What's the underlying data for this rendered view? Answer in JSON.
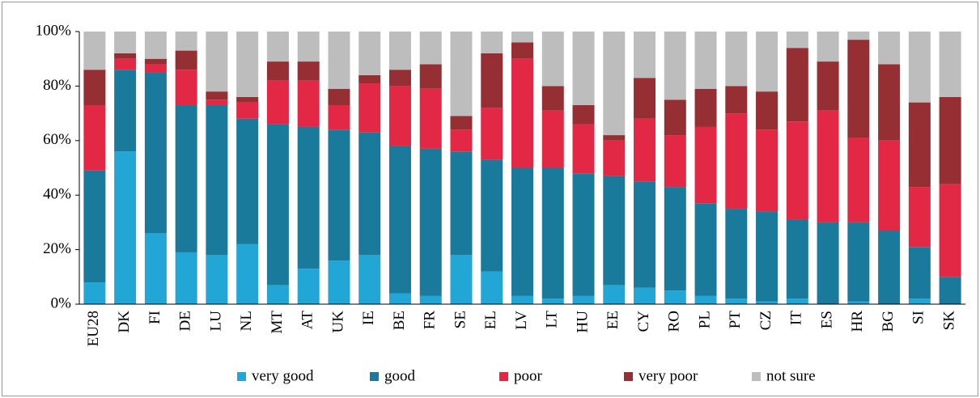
{
  "chart_data": {
    "type": "stacked_bar",
    "categories": [
      "EU28",
      "DK",
      "FI",
      "DE",
      "LU",
      "NL",
      "MT",
      "AT",
      "UK",
      "IE",
      "BE",
      "FR",
      "SE",
      "EL",
      "LV",
      "LT",
      "HU",
      "EE",
      "CY",
      "RO",
      "PL",
      "PT",
      "CZ",
      "IT",
      "ES",
      "HR",
      "BG",
      "SI",
      "SK"
    ],
    "series": [
      {
        "name": "very good",
        "color": "#22a6d6",
        "values": [
          8,
          56,
          26,
          19,
          18,
          22,
          7,
          13,
          16,
          18,
          4,
          3,
          18,
          12,
          3,
          2,
          3,
          7,
          6,
          5,
          3,
          2,
          1,
          2,
          0,
          1,
          0,
          2,
          0
        ]
      },
      {
        "name": "good",
        "color": "#1a7a9c",
        "values": [
          41,
          30,
          59,
          54,
          55,
          46,
          59,
          52,
          48,
          45,
          54,
          54,
          38,
          41,
          47,
          48,
          45,
          40,
          39,
          38,
          34,
          33,
          33,
          29,
          30,
          29,
          27,
          19,
          10
        ]
      },
      {
        "name": "poor",
        "color": "#e32845",
        "values": [
          24,
          4,
          3,
          13,
          2,
          6,
          16,
          17,
          9,
          18,
          22,
          22,
          8,
          19,
          40,
          21,
          18,
          13,
          23,
          19,
          28,
          35,
          30,
          36,
          41,
          31,
          33,
          22,
          34
        ]
      },
      {
        "name": "very poor",
        "color": "#952f33",
        "values": [
          13,
          2,
          2,
          7,
          3,
          2,
          7,
          7,
          6,
          3,
          6,
          9,
          5,
          20,
          6,
          9,
          7,
          2,
          15,
          13,
          14,
          10,
          14,
          27,
          18,
          36,
          28,
          31,
          32
        ]
      },
      {
        "name": "not sure",
        "color": "#bdbdbd",
        "values": [
          14,
          8,
          10,
          7,
          22,
          24,
          11,
          11,
          21,
          16,
          14,
          12,
          31,
          8,
          4,
          20,
          27,
          38,
          17,
          25,
          21,
          20,
          22,
          6,
          11,
          3,
          12,
          26,
          24
        ]
      }
    ],
    "ylim": [
      0,
      100
    ],
    "yticks": [
      {
        "value": 0,
        "label": "0%"
      },
      {
        "value": 20,
        "label": "20%"
      },
      {
        "value": 40,
        "label": "40%"
      },
      {
        "value": 60,
        "label": "60%"
      },
      {
        "value": 80,
        "label": "80%"
      },
      {
        "value": 100,
        "label": "100%"
      }
    ]
  }
}
